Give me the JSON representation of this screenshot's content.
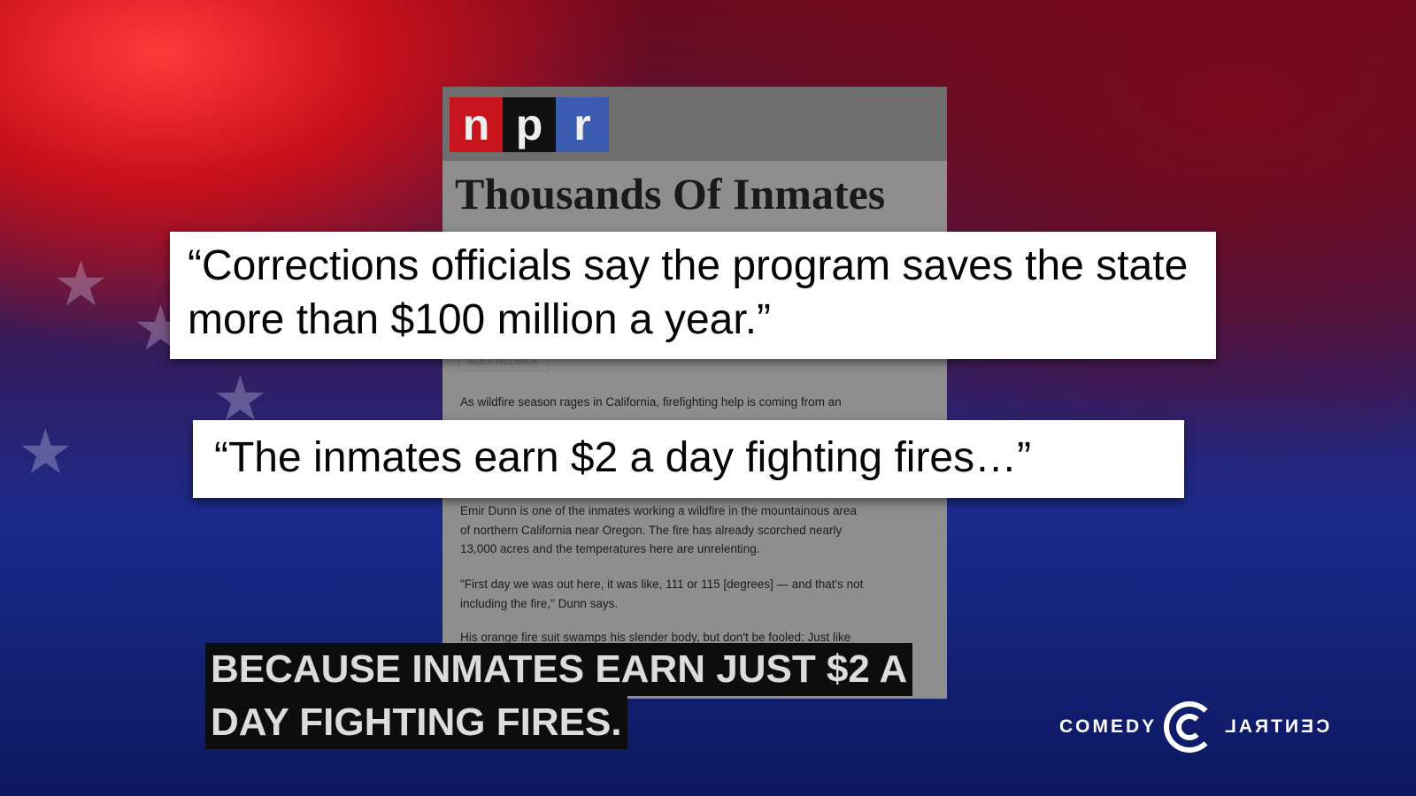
{
  "article": {
    "logo": [
      "n",
      "p",
      "r"
    ],
    "logo_colors": [
      "#c8141e",
      "#111111",
      "#3a5bb0"
    ],
    "headline": "Thousands Of Inmates",
    "byline": "ALEX HELMICK",
    "paragraphs": [
      "As wildfire season rages in California, firefighting help is coming from an",
      "Emir Dunn is one of the inmates working a wildfire in the mountainous area of northern California near Oregon. The fire has already scorched nearly 13,000 acres and the temperatures here are unrelenting.",
      "\"First day we was out here, it was like, 111 or 115 [degrees] — and that's not including the fire,\" Dunn says.",
      "His orange fire suit swamps his slender body, but don't be fooled: Just like"
    ]
  },
  "quotes": [
    "“Corrections officials say the program saves the state more than $100 million a year.”",
    "“The inmates earn $2 a day fighting fires…”"
  ],
  "caption": {
    "line1": "BECAUSE INMATES EARN JUST $2 A",
    "line2": "DAY FIGHTING FIRES."
  },
  "network_logo": {
    "left": "COMEDY",
    "right": "CENTRAL"
  }
}
